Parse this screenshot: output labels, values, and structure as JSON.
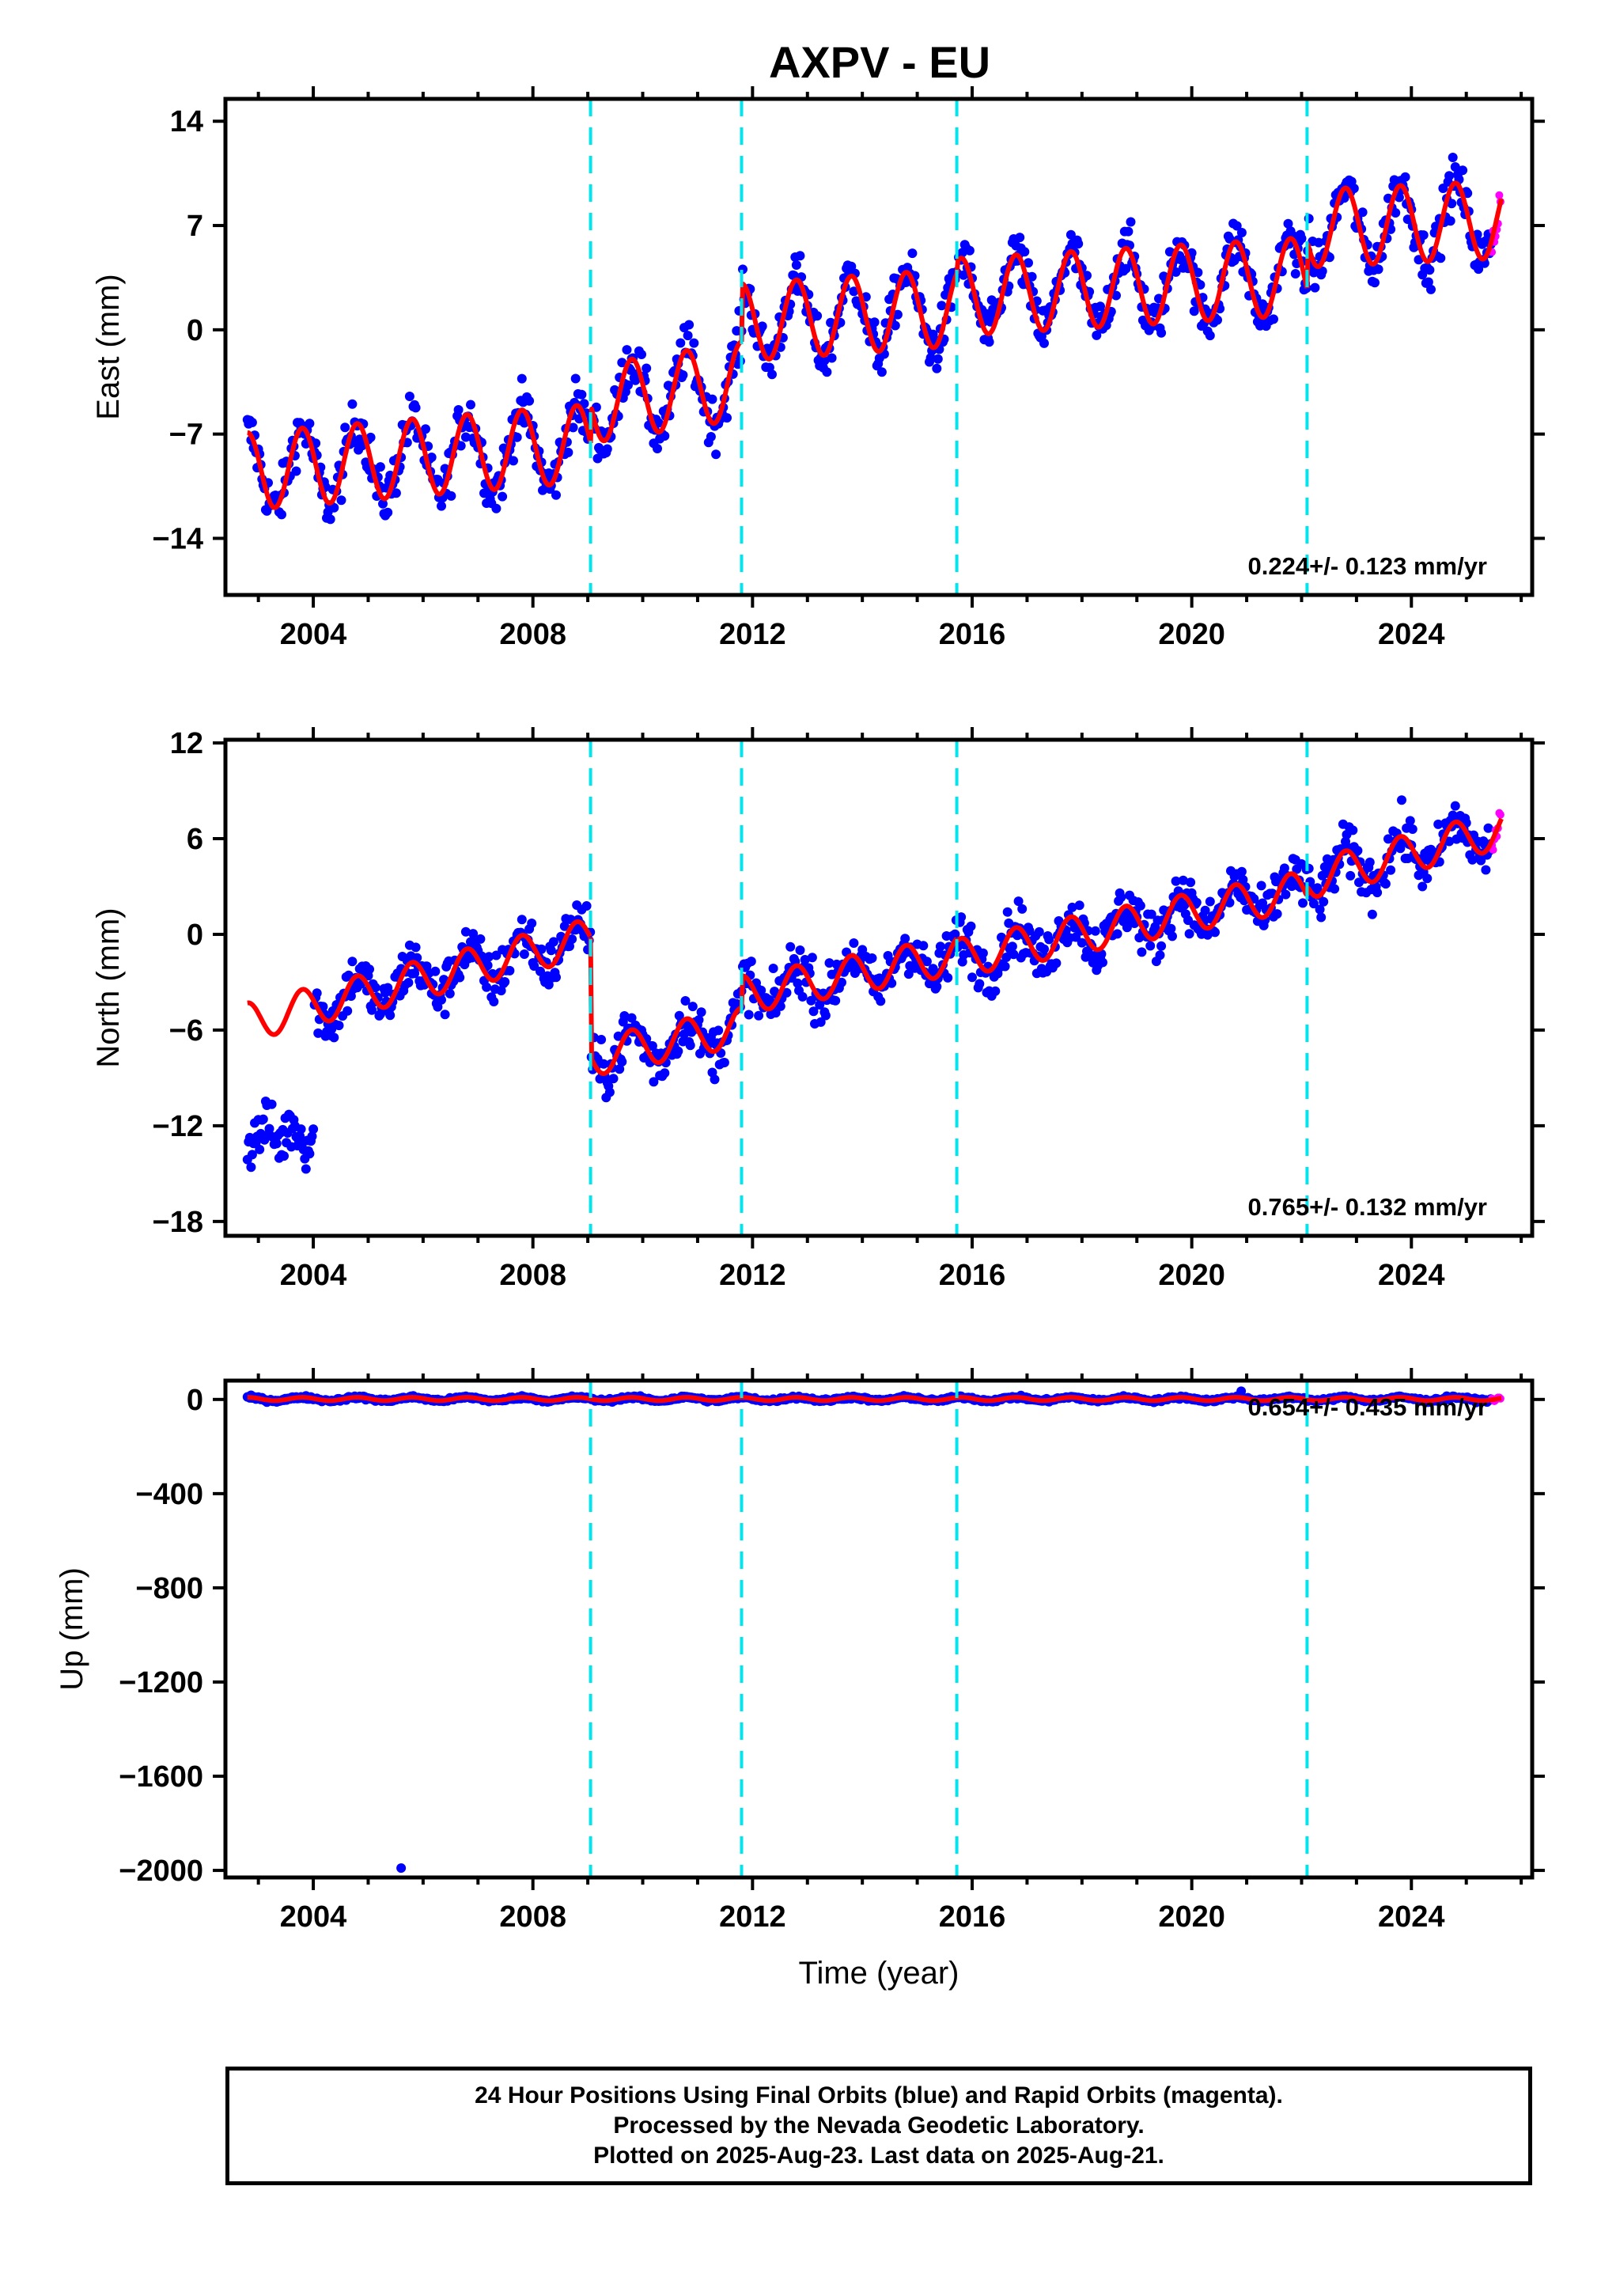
{
  "chart_data": {
    "type": "scatter",
    "title": "AXPV - EU",
    "xlabel": "Time (year)",
    "xlim": [
      2002.4,
      2026.2
    ],
    "x_ticks": [
      2004,
      2008,
      2012,
      2016,
      2020,
      2024
    ],
    "x_tick_labels": [
      "2004",
      "2008",
      "2012",
      "2016",
      "2020",
      "2024"
    ],
    "steps": [
      2009.05,
      2011.8,
      2015.72,
      2022.1
    ],
    "data_span": [
      2002.8,
      2025.64
    ],
    "rapid_start": 2025.45,
    "legend": "none",
    "colors": {
      "final_orbits": "#0000ff",
      "rapid_orbits": "#ff00ff",
      "model": "#ff0000",
      "steps": "#00e5ee"
    },
    "panels": [
      {
        "ylabel": "East (mm)",
        "ylim": [
          -17.8,
          15.5
        ],
        "y_ticks": [
          14,
          7,
          0,
          -7,
          -14
        ],
        "y_tick_labels": [
          "14",
          "7",
          "0",
          "−7",
          "−14"
        ],
        "rate": "0.224+/- 0.123 mm/yr",
        "segments": [
          {
            "start": 2002.8,
            "end": 2009.05,
            "offset_start": -9.5,
            "offset_end": -7.6
          },
          {
            "start": 2009.05,
            "end": 2011.8,
            "offset_start": -5.0,
            "offset_end": -3.4
          },
          {
            "start": 2011.8,
            "end": 2015.72,
            "offset_start": 0.5,
            "offset_end": 1.5
          },
          {
            "start": 2015.72,
            "end": 2022.1,
            "offset_start": 2.2,
            "offset_end": 3.6
          },
          {
            "start": 2022.1,
            "end": 2025.64,
            "offset_start": 6.8,
            "offset_end": 7.4
          }
        ],
        "seasonal_amplitude": 2.6,
        "scatter_spread": 3.6
      },
      {
        "ylabel": "North (mm)",
        "ylim": [
          -18.9,
          12.2
        ],
        "y_ticks": [
          12,
          6,
          0,
          -6,
          -12,
          -18
        ],
        "y_tick_labels": [
          "12",
          "6",
          "0",
          "−6",
          "−12",
          "−18"
        ],
        "rate": "0.765+/- 0.132 mm/yr",
        "segments": [
          {
            "start": 2002.8,
            "end": 2009.05,
            "offset_start": -5.5,
            "offset_end": -0.2
          },
          {
            "start": 2009.05,
            "end": 2011.8,
            "offset_start": -7.7,
            "offset_end": -5.8
          },
          {
            "start": 2011.8,
            "end": 2015.72,
            "offset_start": -3.8,
            "offset_end": -1.3
          },
          {
            "start": 2015.72,
            "end": 2022.1,
            "offset_start": -1.5,
            "offset_end": 2.8
          },
          {
            "start": 2022.1,
            "end": 2025.64,
            "offset_start": 3.4,
            "offset_end": 6.6
          }
        ],
        "seasonal_amplitude": 1.2,
        "scatter_spread": 3.4,
        "early_cluster": {
          "start": 2002.8,
          "end": 2004.0,
          "level": -12.5,
          "spread": 3.5
        }
      },
      {
        "ylabel": "Up (mm)",
        "ylim": [
          -2030,
          80
        ],
        "y_ticks": [
          0,
          -400,
          -800,
          -1200,
          -1600,
          -2000
        ],
        "y_tick_labels": [
          "0",
          "−400",
          "−800",
          "−1200",
          "−1600",
          "−2000"
        ],
        "rate": "0.654+/- 0.435 mm/yr",
        "segments": [
          {
            "start": 2002.8,
            "end": 2025.64,
            "offset_start": 2,
            "offset_end": 2
          }
        ],
        "seasonal_amplitude": 7,
        "scatter_spread": 14,
        "outliers": [
          {
            "x": 2005.6,
            "y": -1990
          },
          {
            "x": 2020.9,
            "y": 35
          }
        ]
      }
    ]
  },
  "footer": {
    "line1": "24 Hour Positions Using Final Orbits (blue) and Rapid Orbits (magenta).",
    "line2": "Processed by the Nevada Geodetic Laboratory.",
    "line3": "Plotted on 2025-Aug-23. Last data on 2025-Aug-21."
  }
}
